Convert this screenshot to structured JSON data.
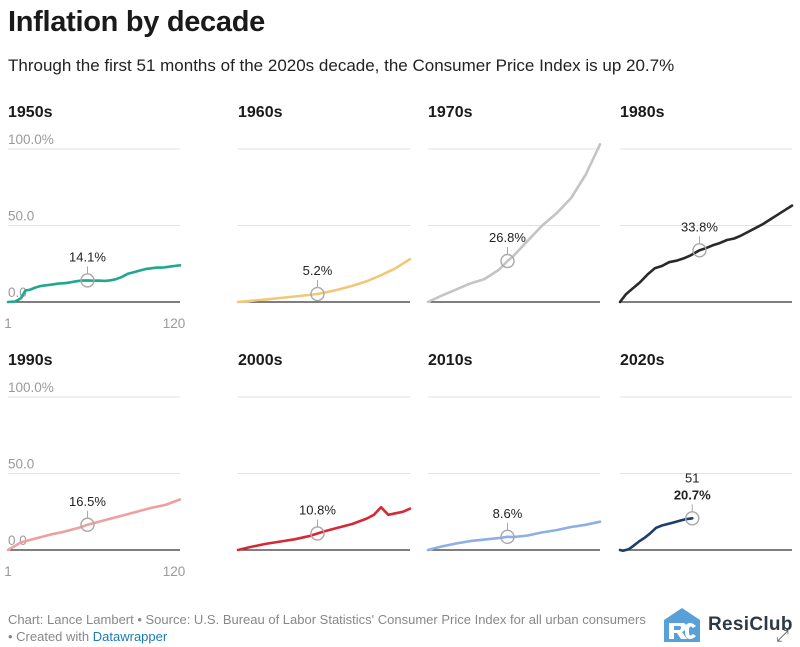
{
  "header": {
    "title": "Inflation by decade",
    "subtitle": "Through the first 51 months of the 2020s decade, the Consumer Price Index is up 20.7%"
  },
  "footer": {
    "source_text": "Chart: Lance Lambert • Source: U.S. Bureau of Labor Statistics' Consumer Price Index for all urban consumers  • Created with ",
    "credit_link": "Datawrapper"
  },
  "logo": {
    "text": "ResiClub",
    "mark_color": "#5aa0d8"
  },
  "colors": {
    "grid": "#e2e2e2",
    "baseline": "#333333",
    "tick_text": "#9a9a9a",
    "marker": "#a8a8a8"
  },
  "chart_data": {
    "type": "line",
    "layout": "small-multiples",
    "x_tick_labels": [
      "1",
      "120"
    ],
    "y_tick_labels": [
      "100.0%",
      "50.0",
      "0.0"
    ],
    "xlim": [
      1,
      120
    ],
    "ylim": [
      0,
      100
    ],
    "panels": [
      {
        "decade": "1950s",
        "color": "#1fa88c",
        "x": [
          1,
          6,
          10,
          13,
          16,
          20,
          24,
          28,
          32,
          36,
          40,
          44,
          48,
          52,
          56,
          60,
          64,
          68,
          72,
          76,
          80,
          84,
          88,
          92,
          96,
          100,
          104,
          108,
          112,
          116,
          120
        ],
        "y": [
          0,
          0.3,
          2.5,
          7.5,
          8,
          9.5,
          10.5,
          11,
          11.5,
          12,
          12.3,
          12.8,
          13.5,
          14,
          14.1,
          13.9,
          14,
          13.8,
          14.2,
          15,
          16.5,
          18.5,
          19.5,
          20.5,
          21.5,
          22,
          22.5,
          22.5,
          23,
          23.5,
          24
        ],
        "marker": {
          "x": 56,
          "y": 14.1,
          "label": "14.1%"
        }
      },
      {
        "decade": "1960s",
        "color": "#f0c878",
        "x": [
          1,
          10,
          20,
          30,
          40,
          50,
          56,
          60,
          70,
          80,
          90,
          100,
          110,
          120
        ],
        "y": [
          0,
          0.8,
          1.6,
          2.6,
          3.6,
          4.6,
          5.2,
          6,
          8,
          10.5,
          13.5,
          17.5,
          22,
          28
        ],
        "marker": {
          "x": 56,
          "y": 5.2,
          "label": "5.2%"
        }
      },
      {
        "decade": "1970s",
        "color": "#c4c4c4",
        "x": [
          1,
          10,
          20,
          30,
          40,
          50,
          56,
          60,
          70,
          80,
          90,
          100,
          110,
          120
        ],
        "y": [
          0,
          4,
          8,
          12,
          15,
          21,
          26.8,
          30,
          40,
          50,
          58,
          68,
          83,
          103
        ],
        "marker": {
          "x": 56,
          "y": 26.8,
          "label": "26.8%"
        }
      },
      {
        "decade": "1980s",
        "color": "#2a2a2a",
        "x": [
          1,
          5,
          10,
          15,
          20,
          25,
          30,
          35,
          40,
          45,
          50,
          56,
          60,
          65,
          70,
          75,
          80,
          85,
          90,
          95,
          100,
          105,
          110,
          115,
          120
        ],
        "y": [
          0,
          5,
          9,
          13,
          18,
          22,
          23.5,
          26,
          27,
          28.5,
          30.5,
          33.8,
          35,
          37,
          38.5,
          40.5,
          41.5,
          43.5,
          46,
          48.5,
          51,
          54,
          57,
          60,
          63
        ],
        "marker": {
          "x": 56,
          "y": 33.8,
          "label": "33.8%"
        }
      },
      {
        "decade": "1990s",
        "color": "#eea0a0",
        "x": [
          1,
          10,
          20,
          30,
          40,
          50,
          56,
          60,
          70,
          80,
          90,
          100,
          110,
          120
        ],
        "y": [
          0,
          5,
          7.5,
          10,
          12,
          14.5,
          16.5,
          17.5,
          20,
          22.5,
          25,
          27.5,
          29.5,
          33
        ],
        "marker": {
          "x": 56,
          "y": 16.5,
          "label": "16.5%"
        }
      },
      {
        "decade": "2000s",
        "color": "#d42a36",
        "x": [
          1,
          10,
          20,
          30,
          40,
          50,
          56,
          60,
          70,
          80,
          90,
          95,
          100,
          105,
          110,
          115,
          120
        ],
        "y": [
          0,
          2,
          4,
          5.5,
          7,
          9,
          10.8,
          12,
          14.5,
          17,
          20.5,
          23,
          28,
          23,
          24,
          25,
          27
        ],
        "marker": {
          "x": 56,
          "y": 10.8,
          "label": "10.8%"
        }
      },
      {
        "decade": "2010s",
        "color": "#8eaee6",
        "x": [
          1,
          10,
          20,
          30,
          40,
          50,
          56,
          60,
          70,
          80,
          90,
          100,
          110,
          120
        ],
        "y": [
          0,
          2.2,
          4.2,
          5.8,
          6.8,
          7.8,
          8.6,
          8.4,
          9.5,
          11.5,
          13,
          15,
          16.5,
          18.5
        ],
        "marker": {
          "x": 56,
          "y": 8.6,
          "label": "8.6%"
        }
      },
      {
        "decade": "2020s",
        "color": "#1f3c6e",
        "x": [
          1,
          3,
          5,
          7,
          10,
          14,
          18,
          22,
          26,
          30,
          34,
          38,
          42,
          46,
          48,
          51
        ],
        "y": [
          0,
          -0.5,
          0,
          0.5,
          2.5,
          5.5,
          8,
          11,
          14.5,
          16,
          17,
          18,
          19,
          20,
          20.3,
          20.7
        ],
        "marker": {
          "x": 51,
          "y": 20.7,
          "label": "20.7%",
          "month_label": "51"
        }
      }
    ]
  }
}
